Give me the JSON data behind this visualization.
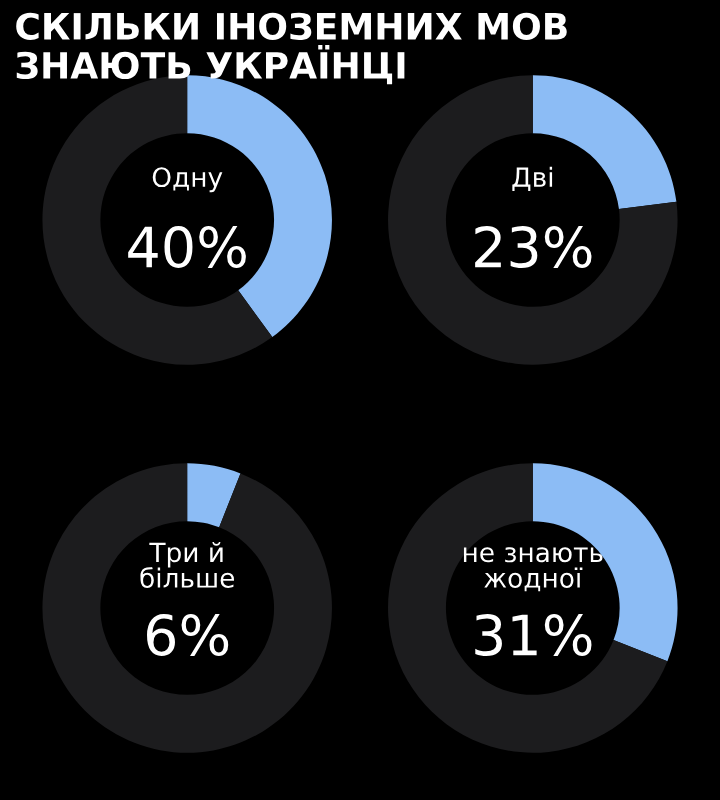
{
  "chart_data": [
    {
      "type": "donut",
      "title": "СКІЛЬКИ ІНОЗЕМНИХ МОВ ЗНАЮТЬ УКРАЇНЦІ",
      "categories": [
        "Одну",
        null
      ],
      "values": [
        40,
        60
      ],
      "colors": [
        "#8cbcf5",
        "#1c1c1e"
      ],
      "value_labels": [
        "40%",
        null
      ]
    },
    {
      "type": "donut",
      "categories": [
        "Дві",
        null
      ],
      "values": [
        23,
        77
      ],
      "colors": [
        "#8cbcf5",
        "#1c1c1e"
      ],
      "value_labels": [
        "23%",
        null
      ]
    },
    {
      "type": "donut",
      "categories": [
        "Три й більше",
        null
      ],
      "values": [
        6,
        94
      ],
      "colors": [
        "#8cbcf5",
        "#1c1c1e"
      ],
      "value_labels": [
        "6%",
        null
      ]
    },
    {
      "type": "donut",
      "categories": [
        "не знають жодної",
        null
      ],
      "values": [
        31,
        69
      ],
      "colors": [
        "#8cbcf5",
        "#1c1c1e"
      ],
      "value_labels": [
        "31%",
        null
      ]
    }
  ]
}
